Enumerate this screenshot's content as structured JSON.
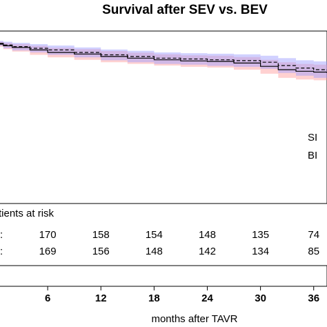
{
  "chart_data": {
    "type": "line",
    "title": "Survival after SEV vs. BEV",
    "xlabel": "months after TAVR",
    "ylabel": "",
    "xlim": [
      0,
      37.5
    ],
    "ylim": [
      0.0,
      1.05
    ],
    "x_ticks": [
      6,
      12,
      18,
      24,
      30,
      36
    ],
    "x_tick_labels": [
      "6",
      "12",
      "18",
      "24",
      "30",
      "36"
    ],
    "grid": false,
    "legend_position": "right",
    "legend_labels": [
      "SI",
      "BI"
    ],
    "series": [
      {
        "name": "SEV",
        "line_style": "solid",
        "color": "#000000",
        "ci_color": "#ff9999",
        "x": [
          0,
          1,
          2,
          4,
          6,
          9,
          12,
          15,
          18,
          21,
          24,
          27,
          30,
          32,
          34,
          36,
          37.5
        ],
        "y": [
          0.97,
          0.96,
          0.95,
          0.935,
          0.92,
          0.91,
          0.895,
          0.885,
          0.875,
          0.868,
          0.865,
          0.855,
          0.835,
          0.815,
          0.805,
          0.8,
          0.795
        ],
        "ci_upper": [
          0.985,
          0.978,
          0.97,
          0.96,
          0.948,
          0.94,
          0.928,
          0.918,
          0.908,
          0.902,
          0.9,
          0.892,
          0.875,
          0.86,
          0.85,
          0.845,
          0.84
        ],
        "ci_lower": [
          0.955,
          0.94,
          0.925,
          0.905,
          0.89,
          0.875,
          0.86,
          0.85,
          0.84,
          0.832,
          0.828,
          0.815,
          0.79,
          0.765,
          0.755,
          0.75,
          0.745
        ]
      },
      {
        "name": "BEV",
        "line_style": "dashed",
        "color": "#000000",
        "ci_color": "#9999ff",
        "x": [
          0,
          1,
          2,
          4,
          6,
          9,
          12,
          15,
          18,
          21,
          24,
          27,
          30,
          32,
          34,
          36,
          37.5
        ],
        "y": [
          0.975,
          0.965,
          0.955,
          0.945,
          0.935,
          0.92,
          0.905,
          0.895,
          0.885,
          0.88,
          0.875,
          0.87,
          0.86,
          0.84,
          0.825,
          0.815,
          0.81
        ],
        "ci_upper": [
          0.99,
          0.985,
          0.978,
          0.97,
          0.962,
          0.95,
          0.938,
          0.93,
          0.92,
          0.915,
          0.912,
          0.908,
          0.9,
          0.885,
          0.872,
          0.865,
          0.86
        ],
        "ci_lower": [
          0.96,
          0.945,
          0.932,
          0.92,
          0.905,
          0.89,
          0.872,
          0.86,
          0.85,
          0.845,
          0.838,
          0.832,
          0.82,
          0.795,
          0.778,
          0.765,
          0.76
        ]
      }
    ],
    "risk_table": {
      "title": "tients at risk",
      "row_markers": [
        ":",
        ":"
      ],
      "rows": [
        [
          "170",
          "158",
          "154",
          "148",
          "135",
          "74"
        ],
        [
          "169",
          "156",
          "148",
          "142",
          "134",
          "85"
        ]
      ]
    }
  }
}
